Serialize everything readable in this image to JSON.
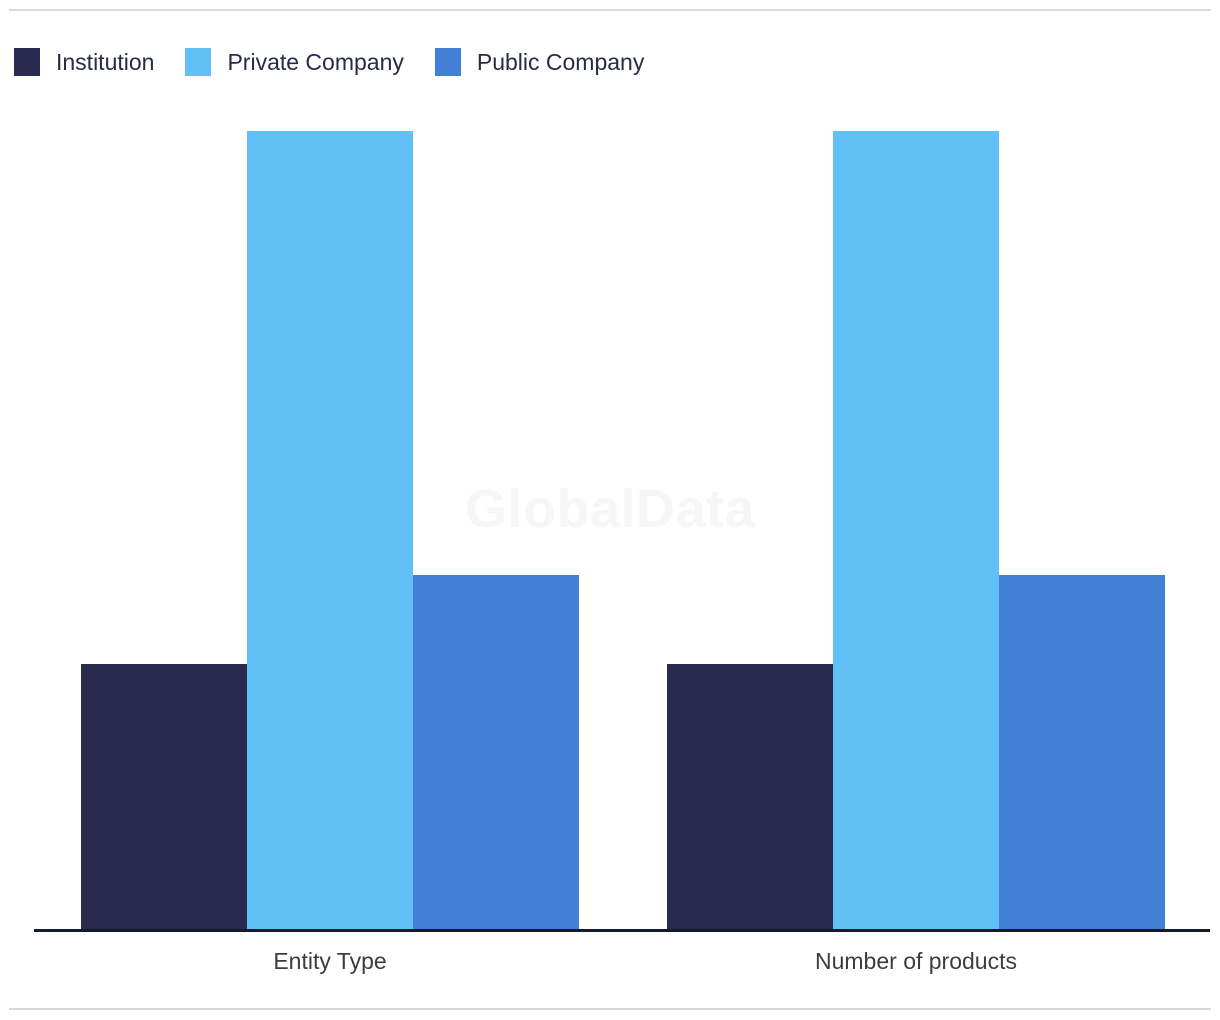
{
  "watermark": {
    "text": "GlobalData"
  },
  "legend": {
    "items": [
      {
        "label": "Institution",
        "color": "#282b4e"
      },
      {
        "label": "Private Company",
        "color": "#61c1f6"
      },
      {
        "label": "Public Company",
        "color": "#4280d6"
      }
    ]
  },
  "chart_data": {
    "type": "bar",
    "categories": [
      "Entity Type",
      "Number of products"
    ],
    "series": [
      {
        "name": "Institution",
        "color": "#282b4e",
        "values": [
          3,
          3
        ]
      },
      {
        "name": "Private Company",
        "color": "#61c1f6",
        "values": [
          9,
          9
        ]
      },
      {
        "name": "Public Company",
        "color": "#4280d6",
        "values": [
          4,
          4
        ]
      }
    ],
    "title": "",
    "xlabel": "",
    "ylabel": "",
    "ylim": [
      0,
      9
    ],
    "grid": false,
    "y_axis_visible": false,
    "legend_position": "top-left",
    "colors": {
      "axis_line": "#151a2c",
      "divider": "#d9d9d9",
      "axis_label_text": "#3d3d3d",
      "legend_text": "#272b46",
      "watermark_text": "#f6f6f6"
    }
  }
}
